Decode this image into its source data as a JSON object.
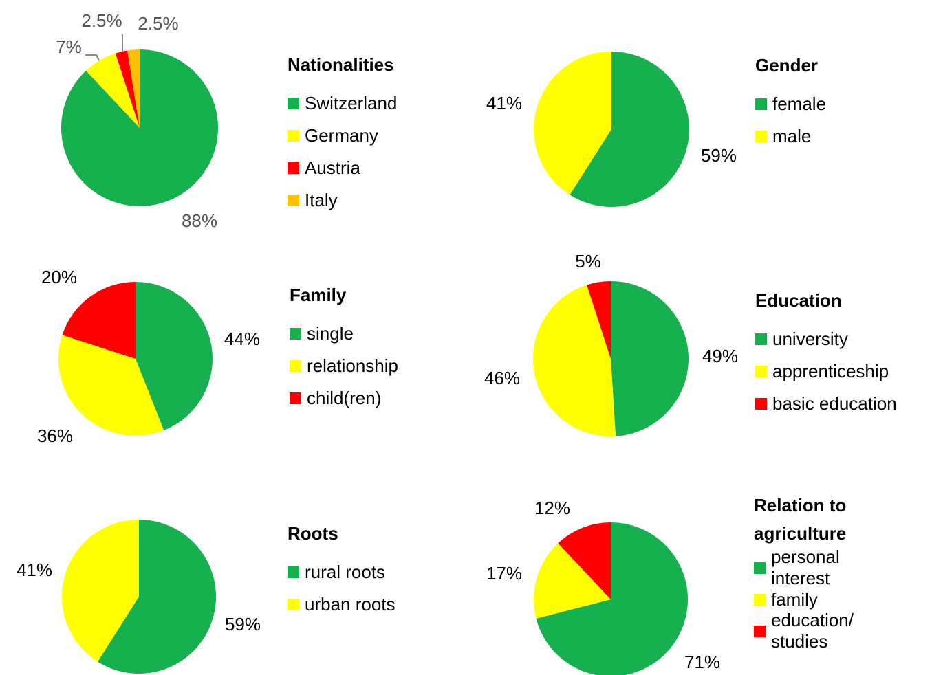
{
  "chart_data": [
    {
      "type": "pie",
      "title": "Nationalities",
      "categories": [
        "Switzerland",
        "Germany",
        "Austria",
        "Italy"
      ],
      "values": [
        88,
        7,
        2.5,
        2.5
      ],
      "value_labels": [
        "88%",
        "7%",
        "2.5%",
        "2.5%"
      ],
      "colors": [
        "#16b04f",
        "#ffff00",
        "#ff0000",
        "#ffc000"
      ],
      "legend": "right"
    },
    {
      "type": "pie",
      "title": "Gender",
      "categories": [
        "female",
        "male"
      ],
      "values": [
        59,
        41
      ],
      "value_labels": [
        "59%",
        "41%"
      ],
      "colors": [
        "#16b04f",
        "#ffff00"
      ],
      "legend": "right"
    },
    {
      "type": "pie",
      "title": "Family",
      "categories": [
        "single",
        "relationship",
        "child(ren)"
      ],
      "values": [
        44,
        36,
        20
      ],
      "value_labels": [
        "44%",
        "36%",
        "20%"
      ],
      "colors": [
        "#16b04f",
        "#ffff00",
        "#ff0000"
      ],
      "legend": "right"
    },
    {
      "type": "pie",
      "title": "Education",
      "categories": [
        "university",
        "apprenticeship",
        "basic education"
      ],
      "values": [
        49,
        46,
        5
      ],
      "value_labels": [
        "49%",
        "46%",
        "5%"
      ],
      "colors": [
        "#16b04f",
        "#ffff00",
        "#ff0000"
      ],
      "legend": "right"
    },
    {
      "type": "pie",
      "title": "Roots",
      "categories": [
        "rural roots",
        "urban roots"
      ],
      "values": [
        59,
        41
      ],
      "value_labels": [
        "59%",
        "41%"
      ],
      "colors": [
        "#16b04f",
        "#ffff00"
      ],
      "legend": "right"
    },
    {
      "type": "pie",
      "title": "Relation to agriculture",
      "categories": [
        "personal interest",
        "family",
        "education/ studies"
      ],
      "values": [
        71,
        17,
        12
      ],
      "value_labels": [
        "71%",
        "17%",
        "12%"
      ],
      "colors": [
        "#16b04f",
        "#ffff00",
        "#ff0000"
      ],
      "legend": "right"
    }
  ]
}
